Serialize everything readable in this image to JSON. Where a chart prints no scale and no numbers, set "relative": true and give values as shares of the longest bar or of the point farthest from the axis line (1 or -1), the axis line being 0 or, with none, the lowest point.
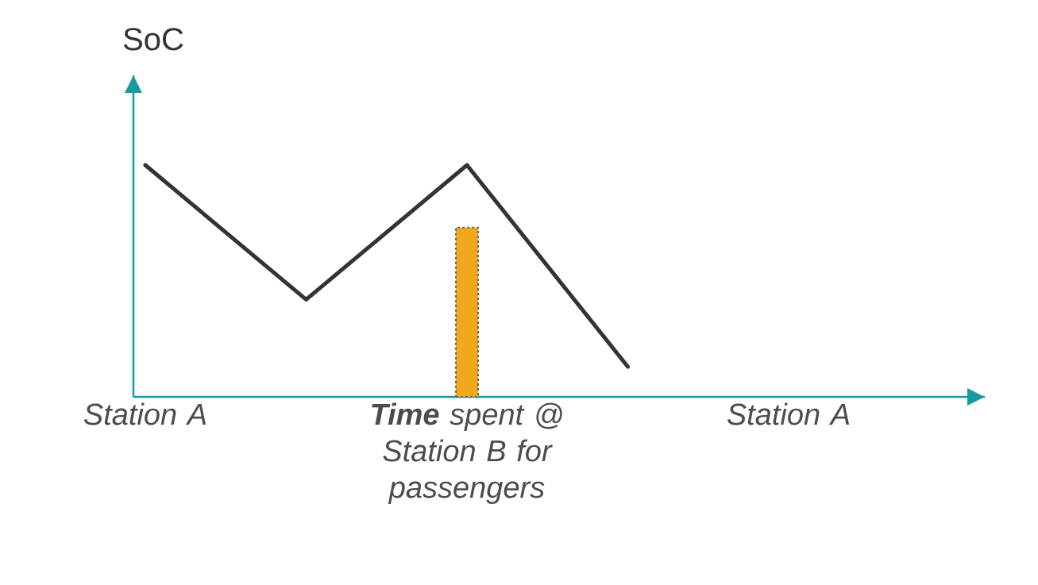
{
  "chart_data": {
    "type": "line",
    "relative": true,
    "ylabel": "SoC",
    "marker": "none",
    "line_style": "solid",
    "categories": [
      "Station A",
      null,
      "**Time** spent @ Station B for passengers",
      null,
      "Station A"
    ],
    "series": [
      {
        "color": "#333333",
        "values": [
          1,
          0.42,
          1,
          0.13,
          null
        ]
      },
      {
        "type": "bar",
        "color": "#f2a81d",
        "line_style": "dashed",
        "values": [
          null,
          null,
          0.73,
          null,
          null
        ]
      }
    ]
  }
}
